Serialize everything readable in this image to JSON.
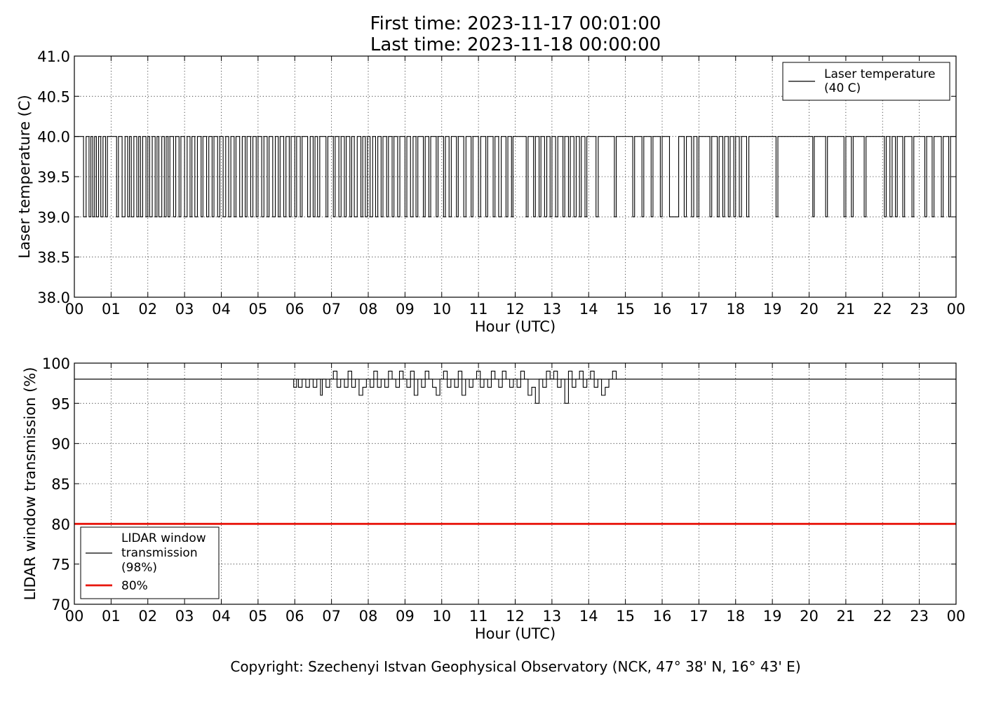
{
  "header": {
    "line1": "First time: 2023-11-17 00:01:00",
    "line2": "Last time: 2023-11-18 00:00:00"
  },
  "footer": {
    "copyright": "Copyright: Szechenyi Istvan Geophysical Observatory (NCK, 47° 38' N, 16° 43' E)"
  },
  "chart_data": [
    {
      "type": "line",
      "xlabel": "Hour (UTC)",
      "ylabel": "Laser temperature (C)",
      "xlim": [
        0,
        24
      ],
      "ylim": [
        38.0,
        41.0
      ],
      "x_ticks": [
        0,
        1,
        2,
        3,
        4,
        5,
        6,
        7,
        8,
        9,
        10,
        11,
        12,
        13,
        14,
        15,
        16,
        17,
        18,
        19,
        20,
        21,
        22,
        23,
        24
      ],
      "x_tick_labels": [
        "00",
        "01",
        "02",
        "03",
        "04",
        "05",
        "06",
        "07",
        "08",
        "09",
        "10",
        "11",
        "12",
        "13",
        "14",
        "15",
        "16",
        "17",
        "18",
        "19",
        "20",
        "21",
        "22",
        "23",
        "00"
      ],
      "y_ticks": [
        38.0,
        38.5,
        39.0,
        39.5,
        40.0,
        40.5,
        41.0
      ],
      "y_tick_labels": [
        "38.0",
        "38.5",
        "39.0",
        "39.5",
        "40.0",
        "40.5",
        "41.0"
      ],
      "grid": true,
      "legend": {
        "placement": "top-right",
        "entries": [
          {
            "label_lines": [
              "Laser temperature",
              "(40 C)"
            ],
            "color": "#000000"
          }
        ]
      },
      "series": [
        {
          "name": "Laser temperature (40 C)",
          "color": "#000000",
          "levels": [
            39.0,
            40.0
          ],
          "description": "toggles between 39.0 and 40.0",
          "low_segments": [
            [
              0.25,
              0.32
            ],
            [
              0.4,
              0.45
            ],
            [
              0.5,
              0.55
            ],
            [
              0.6,
              0.66
            ],
            [
              0.72,
              0.78
            ],
            [
              0.85,
              0.9
            ],
            [
              1.15,
              1.2
            ],
            [
              1.3,
              1.38
            ],
            [
              1.45,
              1.5
            ],
            [
              1.55,
              1.62
            ],
            [
              1.7,
              1.75
            ],
            [
              1.8,
              1.86
            ],
            [
              1.95,
              2.0
            ],
            [
              2.05,
              2.12
            ],
            [
              2.2,
              2.25
            ],
            [
              2.3,
              2.38
            ],
            [
              2.45,
              2.5
            ],
            [
              2.55,
              2.6
            ],
            [
              2.7,
              2.76
            ],
            [
              2.85,
              2.9
            ],
            [
              3.0,
              3.07
            ],
            [
              3.15,
              3.2
            ],
            [
              3.28,
              3.35
            ],
            [
              3.45,
              3.5
            ],
            [
              3.6,
              3.66
            ],
            [
              3.75,
              3.8
            ],
            [
              3.9,
              3.96
            ],
            [
              4.05,
              4.12
            ],
            [
              4.2,
              4.26
            ],
            [
              4.35,
              4.4
            ],
            [
              4.5,
              4.57
            ],
            [
              4.65,
              4.7
            ],
            [
              4.8,
              4.86
            ],
            [
              4.95,
              5.0
            ],
            [
              5.1,
              5.16
            ],
            [
              5.25,
              5.3
            ],
            [
              5.4,
              5.47
            ],
            [
              5.55,
              5.6
            ],
            [
              5.7,
              5.76
            ],
            [
              5.85,
              5.9
            ],
            [
              6.0,
              6.05
            ],
            [
              6.15,
              6.2
            ],
            [
              6.35,
              6.42
            ],
            [
              6.5,
              6.55
            ],
            [
              6.62,
              6.68
            ],
            [
              6.85,
              6.9
            ],
            [
              7.05,
              7.1
            ],
            [
              7.2,
              7.26
            ],
            [
              7.35,
              7.4
            ],
            [
              7.5,
              7.55
            ],
            [
              7.62,
              7.7
            ],
            [
              7.8,
              7.85
            ],
            [
              7.92,
              7.98
            ],
            [
              8.05,
              8.12
            ],
            [
              8.2,
              8.26
            ],
            [
              8.35,
              8.4
            ],
            [
              8.5,
              8.55
            ],
            [
              8.65,
              8.7
            ],
            [
              8.8,
              8.86
            ],
            [
              9.0,
              9.05
            ],
            [
              9.15,
              9.22
            ],
            [
              9.3,
              9.35
            ],
            [
              9.5,
              9.55
            ],
            [
              9.65,
              9.7
            ],
            [
              9.85,
              9.9
            ],
            [
              10.05,
              10.1
            ],
            [
              10.2,
              10.26
            ],
            [
              10.4,
              10.45
            ],
            [
              10.6,
              10.66
            ],
            [
              10.8,
              10.85
            ],
            [
              11.0,
              11.06
            ],
            [
              11.2,
              11.25
            ],
            [
              11.4,
              11.45
            ],
            [
              11.55,
              11.62
            ],
            [
              11.75,
              11.8
            ],
            [
              11.9,
              11.94
            ],
            [
              12.3,
              12.35
            ],
            [
              12.5,
              12.55
            ],
            [
              12.65,
              12.7
            ],
            [
              12.8,
              12.86
            ],
            [
              12.95,
              13.0
            ],
            [
              13.1,
              13.16
            ],
            [
              13.3,
              13.35
            ],
            [
              13.45,
              13.5
            ],
            [
              13.6,
              13.66
            ],
            [
              13.75,
              13.8
            ],
            [
              13.9,
              13.95
            ],
            [
              14.2,
              14.26
            ],
            [
              14.7,
              14.75
            ],
            [
              15.2,
              15.25
            ],
            [
              15.45,
              15.5
            ],
            [
              15.7,
              15.75
            ],
            [
              15.95,
              16.0
            ],
            [
              16.2,
              16.45
            ],
            [
              16.6,
              16.66
            ],
            [
              16.8,
              16.86
            ],
            [
              16.95,
              17.0
            ],
            [
              17.3,
              17.35
            ],
            [
              17.5,
              17.55
            ],
            [
              17.65,
              17.7
            ],
            [
              17.8,
              17.85
            ],
            [
              17.95,
              18.0
            ],
            [
              18.1,
              18.16
            ],
            [
              18.3,
              18.36
            ],
            [
              19.1,
              19.15
            ],
            [
              20.1,
              20.14
            ],
            [
              20.45,
              20.5
            ],
            [
              20.95,
              21.0
            ],
            [
              21.15,
              21.2
            ],
            [
              21.5,
              21.55
            ],
            [
              22.05,
              22.1
            ],
            [
              22.2,
              22.26
            ],
            [
              22.35,
              22.4
            ],
            [
              22.55,
              22.6
            ],
            [
              22.8,
              22.85
            ],
            [
              23.15,
              23.2
            ],
            [
              23.35,
              23.4
            ],
            [
              23.6,
              23.65
            ],
            [
              23.8,
              23.85
            ]
          ]
        }
      ]
    },
    {
      "type": "line",
      "xlabel": "Hour (UTC)",
      "ylabel": "LIDAR window transmission (%)",
      "xlim": [
        0,
        24
      ],
      "ylim": [
        70,
        100
      ],
      "x_ticks": [
        0,
        1,
        2,
        3,
        4,
        5,
        6,
        7,
        8,
        9,
        10,
        11,
        12,
        13,
        14,
        15,
        16,
        17,
        18,
        19,
        20,
        21,
        22,
        23,
        24
      ],
      "x_tick_labels": [
        "00",
        "01",
        "02",
        "03",
        "04",
        "05",
        "06",
        "07",
        "08",
        "09",
        "10",
        "11",
        "12",
        "13",
        "14",
        "15",
        "16",
        "17",
        "18",
        "19",
        "20",
        "21",
        "22",
        "23",
        "00"
      ],
      "y_ticks": [
        70,
        75,
        80,
        85,
        90,
        95,
        100
      ],
      "y_tick_labels": [
        "70",
        "75",
        "80",
        "85",
        "90",
        "95",
        "100"
      ],
      "grid": true,
      "legend": {
        "placement": "lower-left",
        "entries": [
          {
            "label_lines": [
              "LIDAR window",
              "transmission",
              "(98%)"
            ],
            "color": "#000000"
          },
          {
            "label_lines": [
              "80%"
            ],
            "color": "#e8150c"
          }
        ]
      },
      "series": [
        {
          "name": "LIDAR window transmission (98%)",
          "color": "#000000",
          "baseline": 98,
          "x": [
            0,
            5.95,
            5.97,
            6.05,
            6.1,
            6.2,
            6.3,
            6.4,
            6.5,
            6.6,
            6.7,
            6.75,
            6.85,
            6.95,
            7.05,
            7.15,
            7.25,
            7.35,
            7.45,
            7.55,
            7.65,
            7.75,
            7.85,
            7.95,
            8.05,
            8.15,
            8.25,
            8.35,
            8.45,
            8.55,
            8.65,
            8.75,
            8.85,
            8.95,
            9.05,
            9.15,
            9.25,
            9.35,
            9.45,
            9.55,
            9.65,
            9.75,
            9.85,
            9.95,
            10.05,
            10.15,
            10.25,
            10.35,
            10.45,
            10.55,
            10.65,
            10.75,
            10.85,
            10.95,
            11.05,
            11.15,
            11.25,
            11.35,
            11.45,
            11.55,
            11.65,
            11.75,
            11.85,
            11.95,
            12.05,
            12.15,
            12.25,
            12.35,
            12.45,
            12.55,
            12.65,
            12.75,
            12.85,
            12.95,
            13.05,
            13.15,
            13.25,
            13.35,
            13.45,
            13.55,
            13.65,
            13.75,
            13.85,
            13.95,
            14.05,
            14.15,
            14.25,
            14.35,
            14.45,
            14.55,
            14.65,
            14.75,
            14.8,
            24
          ],
          "y": [
            98,
            98,
            97,
            98,
            97,
            98,
            97,
            98,
            97,
            98,
            96,
            98,
            97,
            98,
            99,
            97,
            98,
            97,
            99,
            97,
            98,
            96,
            97,
            98,
            97,
            99,
            97,
            98,
            97,
            99,
            98,
            97,
            99,
            98,
            97,
            99,
            96,
            98,
            97,
            99,
            98,
            97,
            96,
            98,
            99,
            97,
            98,
            97,
            99,
            96,
            98,
            97,
            98,
            99,
            97,
            98,
            97,
            99,
            98,
            97,
            99,
            98,
            97,
            98,
            97,
            99,
            98,
            96,
            97,
            95,
            98,
            97,
            99,
            98,
            99,
            97,
            98,
            95,
            99,
            97,
            98,
            99,
            97,
            98,
            99,
            97,
            98,
            96,
            97,
            98,
            99,
            98,
            98,
            98
          ]
        },
        {
          "name": "80%",
          "color": "#e8150c",
          "x": [
            0,
            24
          ],
          "y": [
            80,
            80
          ]
        }
      ]
    }
  ]
}
